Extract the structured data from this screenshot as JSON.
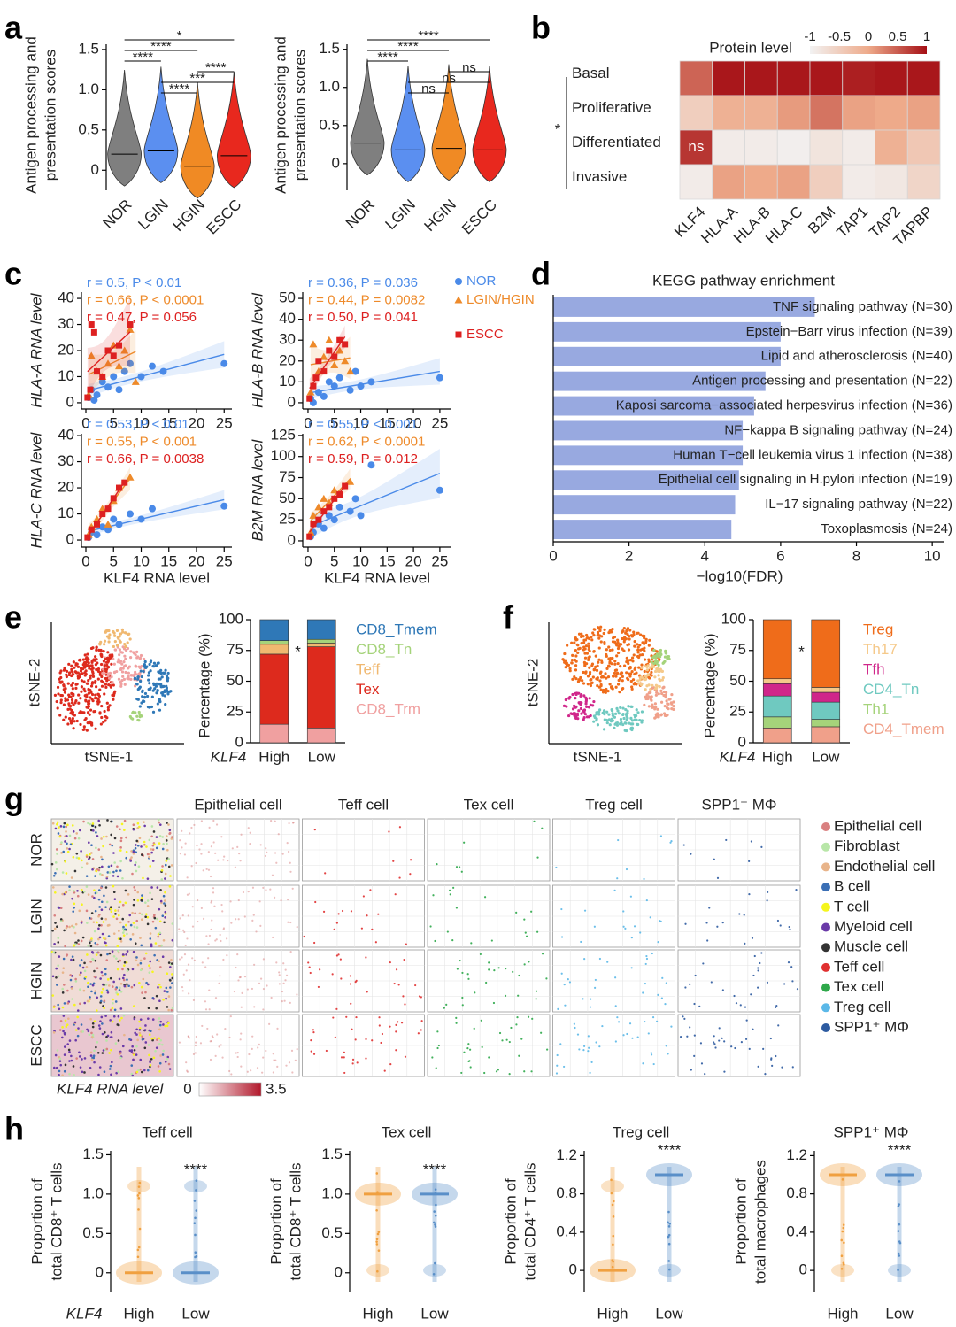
{
  "chart_data": [
    {
      "type": "violin",
      "panel": "a",
      "ylabel": [
        "Antigen processing and",
        "presentation scores"
      ],
      "categories": [
        "NOR",
        "LGIN",
        "HGIN",
        "ESCC"
      ],
      "colors": [
        "#7f7f7f",
        "#5b8ff0",
        "#f08a24",
        "#e8281e"
      ],
      "values": [
        0.2,
        0.24,
        0.05,
        0.18
      ],
      "ylim": [
        -0.25,
        1.73
      ],
      "yticks": [
        0,
        0.5,
        {
          "value": 1,
          "label": "1.0"
        },
        1.5
      ],
      "comparisons": [
        {
          "groups": [
            0,
            3
          ],
          "label": "*"
        },
        {
          "groups": [
            0,
            2
          ],
          "label": "****"
        },
        {
          "groups": [
            0,
            1
          ],
          "label": "****"
        },
        {
          "groups": [
            2,
            3
          ],
          "label": "****"
        },
        {
          "groups": [
            1,
            3
          ],
          "label": "***"
        },
        {
          "groups": [
            1,
            2
          ],
          "label": "****"
        }
      ]
    },
    {
      "type": "violin",
      "ylabel": [
        "Antigen processing and",
        "presentation scores"
      ],
      "categories": [
        "NOR",
        "LGIN",
        "HGIN",
        "ESCC"
      ],
      "colors": [
        "#7f7f7f",
        "#5b8ff0",
        "#f08a24",
        "#e8281e"
      ],
      "values": [
        0.27,
        0.18,
        0.2,
        0.18
      ],
      "ylim": [
        -0.35,
        1.74
      ],
      "yticks": [
        0,
        0.5,
        {
          "value": 1,
          "label": "1.0"
        },
        1.5
      ],
      "comparisons": [
        {
          "groups": [
            0,
            3
          ],
          "label": "****"
        },
        {
          "groups": [
            0,
            2
          ],
          "label": "****"
        },
        {
          "groups": [
            0,
            1
          ],
          "label": "****"
        },
        {
          "groups": [
            2,
            3
          ],
          "label": "ns"
        },
        {
          "groups": [
            1,
            3
          ],
          "label": "ns"
        },
        {
          "groups": [
            1,
            2
          ],
          "label": "ns"
        }
      ]
    },
    {
      "type": "heatmap",
      "panel": "b",
      "colorbar_label": "Protein level",
      "colorbar_ticks": [
        -1,
        -0.5,
        0,
        0.5,
        1
      ],
      "colors": [
        "#f2f2f2",
        "#eeaa8a",
        "#a50f15"
      ],
      "rows": [
        "Basal",
        "Proliferative",
        "Differentiated",
        "Invasive"
      ],
      "row_group_label": "*",
      "columns": [
        "KLF4",
        "HLA-A",
        "HLA-B",
        "HLA-C",
        "B2M",
        "TAP1",
        "TAP2",
        "TAPBP"
      ],
      "values": [
        [
          0.45,
          0.95,
          0.95,
          0.95,
          0.95,
          0.9,
          0.95,
          0.95
        ],
        [
          -0.5,
          -0.1,
          -0.1,
          0.1,
          0.35,
          0.05,
          0,
          0.05
        ],
        [
          0.75,
          -0.9,
          -0.9,
          -0.95,
          -0.8,
          -0.9,
          -0.1,
          -0.4
        ],
        [
          -0.9,
          0.05,
          0,
          0.05,
          -0.5,
          -0.9,
          -0.85,
          -0.6
        ]
      ],
      "annotations": [
        {
          "row": 2,
          "col": 0,
          "label": "ns"
        }
      ]
    },
    {
      "type": "scatter",
      "panel": "c",
      "series": [
        {
          "name": "NOR",
          "color": "#4a8ae8",
          "marker": "circle"
        },
        {
          "name": "LGIN/HGIN",
          "color": "#ee8a2a",
          "marker": "triangle"
        },
        {
          "name": "ESCC",
          "color": "#dd2020",
          "marker": "square"
        }
      ],
      "subplots": [
        {
          "ylabel": "HLA-A RNA level",
          "xlim": [
            -0.8,
            26.4
          ],
          "xticks": [
            0,
            5,
            10,
            15,
            20,
            25
          ],
          "ylim": [
            -2.4,
            42.4
          ],
          "yticks": [
            0,
            10,
            20,
            30,
            40
          ],
          "stats": [
            "r = 0.5, P < 0.01",
            "r = 0.66, P < 0.0001",
            "r = 0.47, P = 0.056"
          ],
          "points": [
            {
              "x": [
                0.5,
                1,
                1.5,
                2,
                3,
                4,
                5,
                6,
                7,
                8,
                10,
                12,
                14,
                25
              ],
              "y": [
                2,
                5,
                1,
                3,
                8,
                6,
                10,
                5,
                12,
                15,
                10,
                14,
                12,
                15
              ]
            },
            {
              "x": [
                0.5,
                1,
                2,
                3,
                4,
                5,
                6,
                7,
                8,
                9
              ],
              "y": [
                3,
                18,
                12,
                10,
                15,
                22,
                14,
                20,
                28,
                8
              ]
            },
            {
              "x": [
                0.3,
                0.8,
                1,
                1.5,
                2,
                3,
                4,
                5,
                6,
                8
              ],
              "y": [
                2,
                5,
                30,
                27,
                12,
                10,
                20,
                18,
                22,
                30
              ]
            }
          ]
        },
        {
          "ylabel": "HLA-B RNA level",
          "xlim": [
            -1,
            27.2
          ],
          "xticks": [
            0,
            5,
            10,
            15,
            20,
            25
          ],
          "ylim": [
            -3,
            53
          ],
          "yticks": [
            0,
            10,
            20,
            30,
            40,
            50
          ],
          "stats": [
            "r = 0.36, P = 0.036",
            "r = 0.44, P = 0.0082",
            "r = 0.50, P = 0.041"
          ],
          "points": [
            {
              "x": [
                0.5,
                1,
                2,
                3,
                4,
                5,
                6,
                8,
                9,
                10,
                12,
                25
              ],
              "y": [
                2,
                0,
                5,
                3,
                10,
                8,
                12,
                6,
                15,
                8,
                10,
                12
              ]
            },
            {
              "x": [
                0.5,
                1,
                2,
                3,
                4,
                5,
                6,
                7,
                8
              ],
              "y": [
                5,
                28,
                15,
                22,
                30,
                18,
                25,
                20,
                15
              ]
            },
            {
              "x": [
                0.3,
                1,
                1.5,
                2,
                3,
                4,
                5,
                6,
                7
              ],
              "y": [
                2,
                8,
                12,
                20,
                15,
                25,
                22,
                30,
                28
              ]
            }
          ]
        },
        {
          "ylabel": "HLA-C RNA level",
          "xlabel": "KLF4 RNA level",
          "xlim": [
            -0.8,
            26.4
          ],
          "xticks": [
            0,
            5,
            10,
            15,
            20,
            25
          ],
          "ylim": [
            -2.7,
            40.7
          ],
          "yticks": [
            0,
            10,
            20,
            30,
            40
          ],
          "stats": [
            "r = 0.53, P < 0.01",
            "r = 0.55, P < 0.001",
            "r = 0.66, P = 0.0038"
          ],
          "points": [
            {
              "x": [
                0.5,
                1,
                2,
                3,
                4,
                5,
                6,
                8,
                10,
                12,
                25
              ],
              "y": [
                1,
                3,
                2,
                5,
                4,
                8,
                6,
                10,
                8,
                12,
                13
              ]
            },
            {
              "x": [
                0.5,
                1,
                2,
                3,
                4,
                5,
                6,
                8
              ],
              "y": [
                2,
                5,
                8,
                12,
                6,
                15,
                20,
                24
              ]
            },
            {
              "x": [
                0.3,
                1,
                2,
                3,
                4,
                5,
                6,
                7
              ],
              "y": [
                1,
                4,
                6,
                10,
                12,
                16,
                20,
                22
              ]
            }
          ]
        },
        {
          "ylabel": "B2M RNA level",
          "xlabel": "KLF4 RNA level",
          "xlim": [
            -1,
            27.2
          ],
          "xticks": [
            0,
            5,
            10,
            15,
            20,
            25
          ],
          "ylim": [
            -7.4,
            127
          ],
          "yticks": [
            0,
            25,
            50,
            75,
            100,
            125
          ],
          "stats": [
            "r = 0.55, P < 0.001",
            "r = 0.62, P < 0.0001",
            "r = 0.59, P = 0.012"
          ],
          "points": [
            {
              "x": [
                0.5,
                1,
                2,
                3,
                4,
                5,
                6,
                8,
                9,
                10,
                12,
                25
              ],
              "y": [
                5,
                10,
                20,
                15,
                30,
                25,
                40,
                35,
                50,
                30,
                90,
                60
              ]
            },
            {
              "x": [
                0.5,
                1,
                2,
                3,
                4,
                5,
                6,
                8
              ],
              "y": [
                10,
                30,
                40,
                50,
                45,
                60,
                55,
                70
              ]
            },
            {
              "x": [
                0.3,
                1,
                2,
                3,
                4,
                5,
                6,
                7
              ],
              "y": [
                5,
                20,
                25,
                35,
                40,
                50,
                55,
                65
              ]
            }
          ]
        }
      ]
    },
    {
      "type": "bar",
      "orientation": "horizontal",
      "panel": "d",
      "title": "KEGG pathway enrichment",
      "xlabel": "−log10(FDR)",
      "color": "#98a9e0",
      "categories": [
        "TNF signaling pathway (N=30)",
        "Epstein−Barr virus infection (N=39)",
        "Lipid and atherosclerosis (N=40)",
        "Antigen processing and presentation (N=22)",
        "Kaposi sarcoma−associated herpesvirus infection (N=36)",
        "NF−kappa B signaling pathway (N=24)",
        "Human T−cell leukemia virus 1 infection (N=38)",
        "Epithelial cell signaling in H.pylori infection (N=19)",
        "IL−17 signaling pathway (N=22)",
        "Toxoplasmosis (N=24)"
      ],
      "values": [
        6.9,
        6.0,
        6.0,
        5.6,
        5.3,
        5.0,
        5.0,
        4.9,
        4.8,
        4.7
      ],
      "xlim": [
        0,
        10.3
      ],
      "xticks": [
        0,
        2,
        4,
        6,
        8,
        10
      ]
    },
    {
      "type": "stacked_bar",
      "panel": "e",
      "embedding_axes": [
        "tSNE-1",
        "tSNE-2"
      ],
      "ylabel": "Percentage (%)",
      "group_label": "KLF4",
      "categories": [
        "High",
        "Low"
      ],
      "significance": "*",
      "ylim": [
        0,
        100
      ],
      "yticks": [
        0,
        25,
        50,
        75,
        100
      ],
      "series": [
        {
          "name": "CD8_Tmem",
          "color": "#2f78b7",
          "values": [
            17,
            16
          ]
        },
        {
          "name": "CD8_Tn",
          "color": "#a5d37a",
          "values": [
            3,
            3
          ]
        },
        {
          "name": "Teff",
          "color": "#f0b870",
          "values": [
            8,
            3
          ]
        },
        {
          "name": "Tex",
          "color": "#dd2a1d",
          "values": [
            57,
            66
          ]
        },
        {
          "name": "CD8_Trm",
          "color": "#f0a0a0",
          "values": [
            15,
            12
          ]
        }
      ]
    },
    {
      "type": "stacked_bar",
      "panel": "f",
      "embedding_axes": [
        "tSNE-1",
        "tSNE-2"
      ],
      "ylabel": "Percentage (%)",
      "group_label": "KLF4",
      "categories": [
        "High",
        "Low"
      ],
      "significance": "*",
      "ylim": [
        0,
        100
      ],
      "yticks": [
        0,
        25,
        50,
        75,
        100
      ],
      "series": [
        {
          "name": "Treg",
          "color": "#ef6c1a",
          "values": [
            48,
            55
          ]
        },
        {
          "name": "Th17",
          "color": "#f5c98a",
          "values": [
            4,
            4
          ]
        },
        {
          "name": "Tfh",
          "color": "#d0268a",
          "values": [
            10,
            8
          ]
        },
        {
          "name": "CD4_Tn",
          "color": "#6fc9c0",
          "values": [
            17,
            14
          ]
        },
        {
          "name": "Th1",
          "color": "#a5d37a",
          "values": [
            9,
            6
          ]
        },
        {
          "name": "CD4_Tmem",
          "color": "#f0a08a",
          "values": [
            12,
            13
          ]
        }
      ]
    },
    {
      "type": "spatial_map",
      "panel": "g",
      "columns": [
        "Epithelial cell",
        "Teff cell",
        "Tex cell",
        "Treg cell",
        "SPP1⁺ MΦ"
      ],
      "rows": [
        "NOR",
        "LGIN",
        "HGIN",
        "ESCC"
      ],
      "legend": [
        {
          "name": "Epithelial cell",
          "color": "#d98080"
        },
        {
          "name": "Fibroblast",
          "color": "#b8e6a8"
        },
        {
          "name": "Endothelial cell",
          "color": "#e8b48a"
        },
        {
          "name": "B cell",
          "color": "#3b6fb5"
        },
        {
          "name": "T cell",
          "color": "#f5f51e"
        },
        {
          "name": "Myeloid cell",
          "color": "#6a3aa8"
        },
        {
          "name": "Muscle cell",
          "color": "#333333"
        },
        {
          "name": "Teff cell",
          "color": "#e03030"
        },
        {
          "name": "Tex cell",
          "color": "#2ea84a"
        },
        {
          "name": "Treg cell",
          "color": "#5bb8e8"
        },
        {
          "name": "SPP1⁺ MΦ",
          "color": "#2c5aa0"
        }
      ],
      "colorbar": {
        "label": "KLF4 RNA level",
        "ticks": [
          0,
          3.5
        ]
      }
    },
    {
      "type": "violin",
      "panel": "h",
      "group_label": "KLF4",
      "categories": [
        "High",
        "Low"
      ],
      "colors": [
        "#f0a040",
        "#5a8fc8"
      ],
      "subplots": [
        {
          "title": "Teff cell",
          "ylabel": [
            "Proportion of",
            "total CD8⁺ T cells"
          ],
          "values": [
            0,
            0
          ],
          "significance": "****",
          "ylim": [
            -0.25,
            1.55
          ],
          "yticks": [
            0,
            0.5,
            {
              "value": 1,
              "label": "1.0"
            },
            1.5
          ]
        },
        {
          "title": "Tex cell",
          "ylabel": [
            "Proportion of",
            "total CD8⁺ T cells"
          ],
          "values": [
            1,
            1
          ],
          "significance": "****",
          "ylim": [
            -0.25,
            1.55
          ],
          "yticks": [
            0,
            0.5,
            {
              "value": 1,
              "label": "1.0"
            },
            1.5
          ]
        },
        {
          "title": "Treg cell",
          "ylabel": [
            "Proportion of",
            "total CD4⁺ T cells"
          ],
          "values": [
            0,
            1
          ],
          "significance": "****",
          "ylim": [
            -0.23,
            1.25
          ],
          "yticks": [
            0,
            0.4,
            0.8,
            1.2
          ]
        },
        {
          "title": "SPP1⁺ MΦ",
          "ylabel": [
            "Proportion of",
            "total macrophages"
          ],
          "values": [
            1,
            1
          ],
          "significance": "****",
          "ylim": [
            -0.23,
            1.25
          ],
          "yticks": [
            0,
            0.4,
            0.8,
            1.2
          ]
        }
      ]
    }
  ]
}
